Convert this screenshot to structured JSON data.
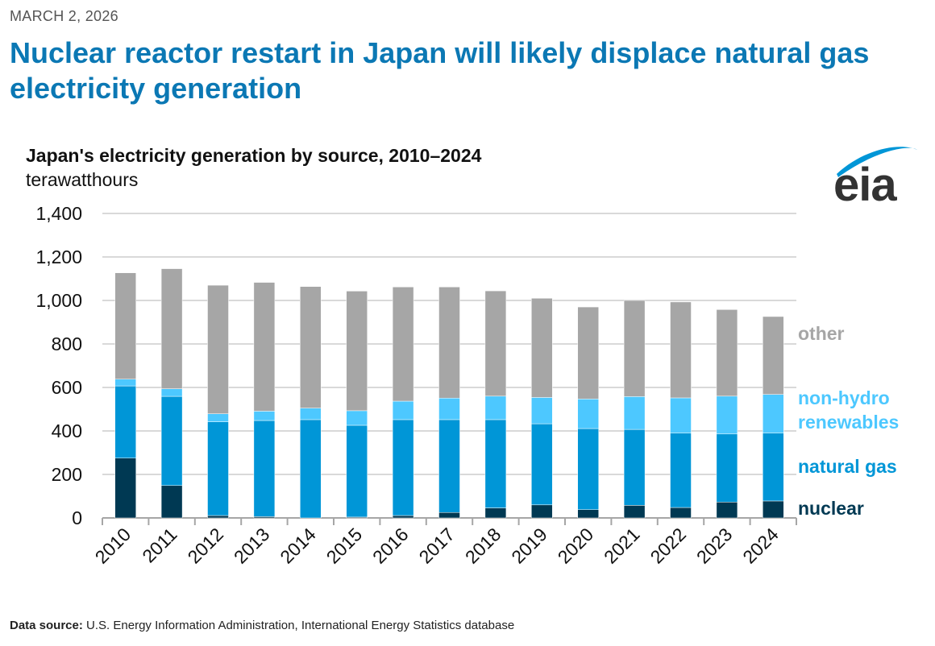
{
  "header": {
    "date": "MARCH 2, 2026",
    "title": "Nuclear reactor restart in Japan will likely displace natural gas electricity generation"
  },
  "logo": {
    "text": "eia"
  },
  "footer": {
    "source_label": "Data source:",
    "source_text": "U.S. Energy Information Administration, International Energy Statistics database"
  },
  "chart_data": {
    "type": "bar",
    "stacked": true,
    "title": "Japan's electricity generation by source, 2010–2024",
    "ylabel": "terawatthours",
    "xlabel": "",
    "ylim": [
      0,
      1400
    ],
    "yticks": [
      0,
      200,
      400,
      600,
      800,
      1000,
      1200,
      1400
    ],
    "ytick_labels": [
      "0",
      "200",
      "400",
      "600",
      "800",
      "1,000",
      "1,200",
      "1,400"
    ],
    "grid": true,
    "legend_placement": "right (inline labels)",
    "categories": [
      "2010",
      "2011",
      "2012",
      "2013",
      "2014",
      "2015",
      "2016",
      "2017",
      "2018",
      "2019",
      "2020",
      "2021",
      "2022",
      "2023",
      "2024"
    ],
    "series": [
      {
        "name": "nuclear",
        "color": "#003953",
        "values": [
          275,
          149,
          11,
          6,
          0,
          4,
          11,
          25,
          46,
          60,
          38,
          58,
          48,
          73,
          78
        ]
      },
      {
        "name": "natural gas",
        "color": "#0096d7",
        "values": [
          332,
          410,
          431,
          442,
          452,
          422,
          441,
          427,
          406,
          373,
          373,
          349,
          342,
          313,
          312
        ]
      },
      {
        "name": "non-hydro renewables",
        "label_lines": [
          "non-hydro",
          "renewables"
        ],
        "color": "#4dc8ff",
        "values": [
          31,
          35,
          37,
          43,
          53,
          67,
          85,
          99,
          108,
          121,
          136,
          151,
          162,
          174,
          178
        ]
      },
      {
        "name": "other",
        "color": "#a6a6a6",
        "values": [
          489,
          552,
          591,
          592,
          559,
          550,
          525,
          511,
          484,
          456,
          423,
          442,
          441,
          398,
          358
        ]
      }
    ]
  }
}
